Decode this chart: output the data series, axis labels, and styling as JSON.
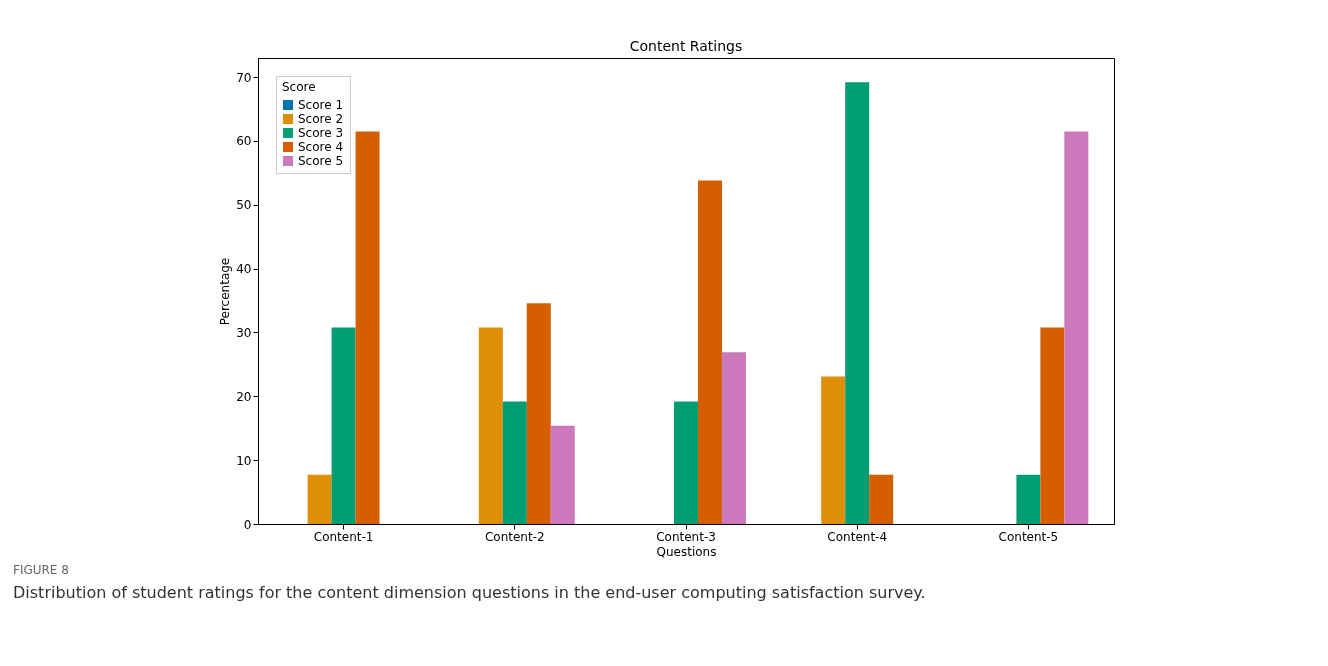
{
  "chart_data": {
    "type": "bar",
    "title": "Content Ratings",
    "xlabel": "Questions",
    "ylabel": "Percentage",
    "legend_title": "Score",
    "categories": [
      "Content-1",
      "Content-2",
      "Content-3",
      "Content-4",
      "Content-5"
    ],
    "series": [
      {
        "name": "Score 1",
        "color": "#0173b2",
        "values": [
          0,
          0,
          0,
          0,
          0
        ]
      },
      {
        "name": "Score 2",
        "color": "#de8f05",
        "values": [
          7.7,
          30.8,
          0,
          23.1,
          0
        ]
      },
      {
        "name": "Score 3",
        "color": "#029e73",
        "values": [
          30.8,
          19.2,
          19.2,
          69.2,
          7.7
        ]
      },
      {
        "name": "Score 4",
        "color": "#d55e00",
        "values": [
          61.5,
          34.6,
          53.8,
          7.7,
          30.8
        ]
      },
      {
        "name": "Score 5",
        "color": "#cc78bc",
        "values": [
          0,
          15.4,
          26.9,
          0,
          61.5
        ]
      }
    ],
    "ylim": [
      0,
      73
    ],
    "yticks": [
      0,
      10,
      20,
      30,
      40,
      50,
      60,
      70
    ],
    "grid": false,
    "legend": "top left",
    "annotations": [
      "FIGURE 8",
      "Distribution of student ratings for the content dimension questions in the end-user computing satisfaction survey."
    ]
  }
}
